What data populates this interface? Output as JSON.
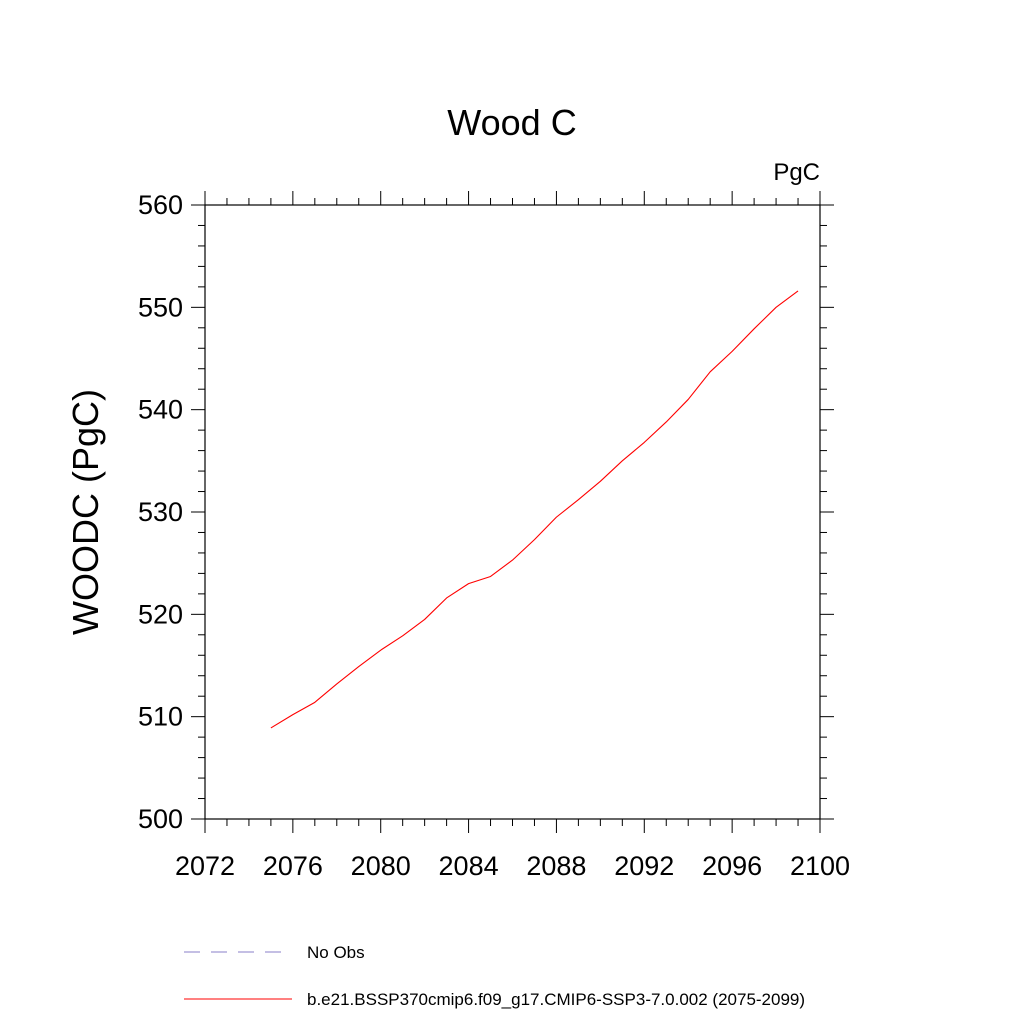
{
  "chart_data": {
    "type": "line",
    "title": "Wood C",
    "units": "PgC",
    "ylabel": "WOODC  (PgC)",
    "xlabel": "",
    "xlim": [
      2072,
      2100
    ],
    "ylim": [
      500,
      560
    ],
    "x_ticks": [
      2072,
      2076,
      2080,
      2084,
      2088,
      2092,
      2096,
      2100
    ],
    "y_ticks": [
      500,
      510,
      520,
      530,
      540,
      550,
      560
    ],
    "grid": false,
    "legend_position": "bottom",
    "series": [
      {
        "name": "b.e21.BSSP370cmip6.f09_g17.CMIP6-SSP3-7.0.002 (2075-2099)",
        "color": "#ff0000",
        "dash": "solid",
        "x": [
          2075,
          2076,
          2077,
          2078,
          2079,
          2080,
          2081,
          2082,
          2083,
          2084,
          2085,
          2086,
          2087,
          2088,
          2089,
          2090,
          2091,
          2092,
          2093,
          2094,
          2095,
          2096,
          2097,
          2098,
          2099
        ],
        "y": [
          508.9,
          510.2,
          511.4,
          513.2,
          514.9,
          516.5,
          517.9,
          519.5,
          521.6,
          523.0,
          523.7,
          525.3,
          527.3,
          529.5,
          531.2,
          533.0,
          535.0,
          536.8,
          538.8,
          541.0,
          543.7,
          545.7,
          547.9,
          550.0,
          551.6
        ]
      }
    ],
    "legend": [
      {
        "label": "No Obs",
        "color": "#8a7fc8",
        "dash": "dashed"
      },
      {
        "label": "b.e21.BSSP370cmip6.f09_g17.CMIP6-SSP3-7.0.002 (2075-2099)",
        "color": "#ff0000",
        "dash": "solid"
      }
    ]
  }
}
